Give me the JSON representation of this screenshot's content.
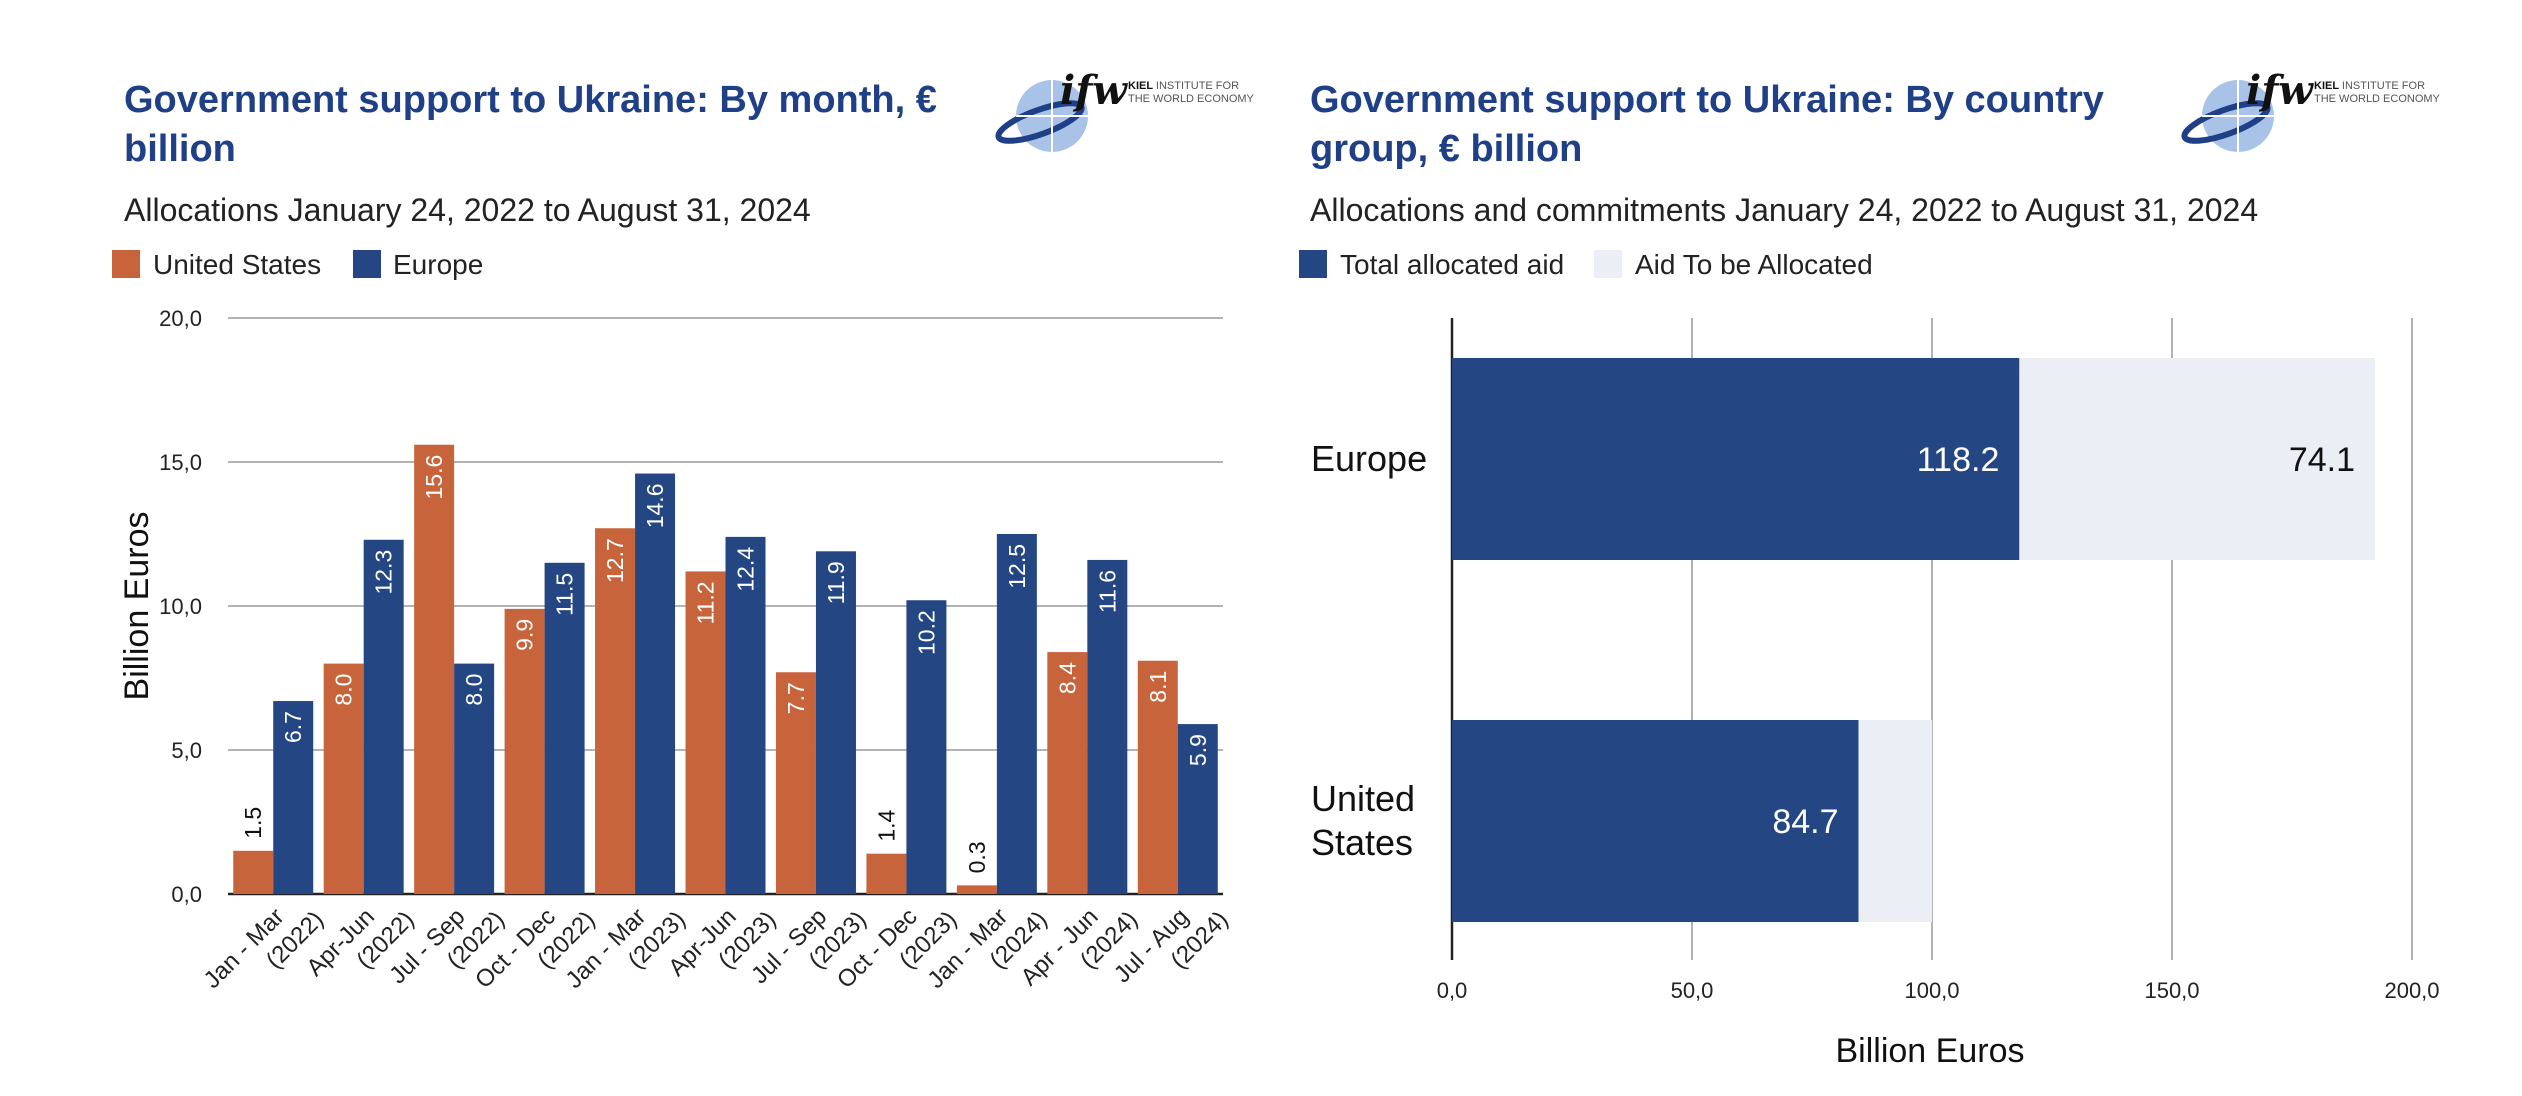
{
  "colors": {
    "us": "#c8643c",
    "europe": "#244784",
    "to_be_allocated": "#eceef5",
    "title": "#1f3f86",
    "gridline": "#9a9a9a"
  },
  "logo": {
    "mark": "ifw",
    "line1_bold": "KIEL",
    "line1_rest": "INSTITUTE FOR",
    "line2": "THE WORLD ECONOMY",
    "icon": "globe-icon"
  },
  "chart_data": [
    {
      "type": "bar",
      "title_lines": [
        "Government support to Ukraine: By month, €",
        "billion"
      ],
      "subtitle": "Allocations January 24, 2022 to August 31, 2024",
      "ylabel": "Billion Euros",
      "xlabel": "",
      "ylim": [
        0,
        20
      ],
      "yticks": [
        "0,0",
        "5,0",
        "10,0",
        "15,0",
        "20,0"
      ],
      "ytick_values": [
        0,
        5,
        10,
        15,
        20
      ],
      "grid": true,
      "legend_position": "top-left",
      "categories": [
        [
          "Jan - Mar",
          "(2022)"
        ],
        [
          "Apr-Jun",
          "(2022)"
        ],
        [
          "Jul - Sep",
          "(2022)"
        ],
        [
          "Oct - Dec",
          "(2022)"
        ],
        [
          "Jan - Mar",
          "(2023)"
        ],
        [
          "Apr-Jun",
          "(2023)"
        ],
        [
          "Jul - Sep",
          "(2023)"
        ],
        [
          "Oct - Dec",
          "(2023)"
        ],
        [
          "Jan - Mar",
          "(2024)"
        ],
        [
          "Apr - Jun",
          "(2024)"
        ],
        [
          "Jul - Aug",
          "(2024)"
        ]
      ],
      "series": [
        {
          "name": "United States",
          "values": [
            1.5,
            8.0,
            15.6,
            9.9,
            12.7,
            11.2,
            7.7,
            1.4,
            0.3,
            8.4,
            8.1
          ],
          "labels": [
            "1.5",
            "8.0",
            "15.6",
            "9.9",
            "12.7",
            "11.2",
            "7.7",
            "1.4",
            "0.3",
            "8.4",
            "8.1"
          ]
        },
        {
          "name": "Europe",
          "values": [
            6.7,
            12.3,
            8.0,
            11.5,
            14.6,
            12.4,
            11.9,
            10.2,
            12.5,
            11.6,
            5.9
          ],
          "labels": [
            "6.7",
            "12.3",
            "8.0",
            "11.5",
            "14.6",
            "12.4",
            "11.9",
            "10.2",
            "12.5",
            "11.6",
            "5.9"
          ]
        }
      ]
    },
    {
      "type": "bar",
      "orientation": "horizontal",
      "stacked": true,
      "title_lines": [
        "Government support to Ukraine: By country",
        "group, € billion"
      ],
      "subtitle": "Allocations and commitments January 24, 2022 to August 31, 2024",
      "xlabel": "Billion Euros",
      "ylabel": "",
      "xlim": [
        0,
        200
      ],
      "xticks": [
        "0,0",
        "50,0",
        "100,0",
        "150,0",
        "200,0"
      ],
      "xtick_values": [
        0,
        50,
        100,
        150,
        200
      ],
      "grid": true,
      "legend_position": "top-left",
      "categories": [
        [
          "Europe"
        ],
        [
          "United",
          "States"
        ]
      ],
      "series": [
        {
          "name": "Total allocated aid",
          "values": [
            118.2,
            84.7
          ],
          "labels": [
            "118.2",
            "84.7"
          ]
        },
        {
          "name": "Aid To be Allocated",
          "values": [
            74.1,
            15.3
          ],
          "labels": [
            "74.1",
            ""
          ]
        }
      ]
    }
  ]
}
